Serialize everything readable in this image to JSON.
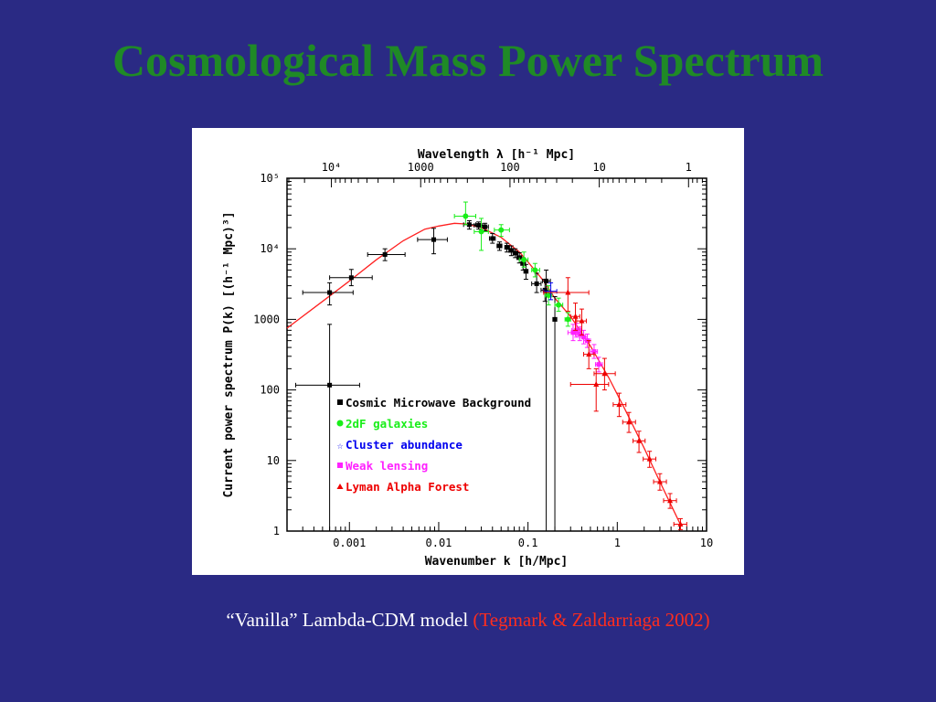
{
  "slide": {
    "title": "Cosmological Mass Power Spectrum",
    "caption_main": "“Vanilla” Lambda-CDM model ",
    "caption_ref": "(Tegmark & Zaldarriaga 2002)"
  },
  "colors": {
    "background": "#2a2a84",
    "title": "#1f8a26",
    "caption_main": "#ffffff",
    "caption_ref": "#ff2d1e",
    "model_curve": "#ff2020",
    "cmb": "#000000",
    "twodf": "#19ee19",
    "cluster": "#0000ee",
    "lensing": "#ff22ff",
    "lyman": "#ee0000"
  },
  "chart_data": {
    "type": "scatter",
    "title": "",
    "xlabel": "Wavenumber k [h/Mpc]",
    "ylabel": "Current power spectrum P(k) [(h⁻¹ Mpc)³]",
    "top_xlabel": "Wavelength λ [h⁻¹ Mpc]",
    "xscale": "log",
    "yscale": "log",
    "xlim": [
      0.0002,
      10
    ],
    "ylim": [
      1,
      100000
    ],
    "x_ticks": [
      {
        "value": 0.001,
        "label": "0.001"
      },
      {
        "value": 0.01,
        "label": "0.01"
      },
      {
        "value": 0.1,
        "label": "0.1"
      },
      {
        "value": 1,
        "label": "1"
      },
      {
        "value": 10,
        "label": "10"
      }
    ],
    "y_ticks": [
      {
        "value": 1,
        "label": "1"
      },
      {
        "value": 10,
        "label": "10"
      },
      {
        "value": 100,
        "label": "100"
      },
      {
        "value": 1000,
        "label": "1000"
      },
      {
        "value": 10000,
        "label": "10⁴"
      },
      {
        "value": 100000,
        "label": "10⁵"
      }
    ],
    "top_ticks": [
      {
        "value": 10000,
        "label": "10⁴"
      },
      {
        "value": 1000,
        "label": "1000"
      },
      {
        "value": 100,
        "label": "100"
      },
      {
        "value": 10,
        "label": "10"
      },
      {
        "value": 1,
        "label": "1"
      }
    ],
    "legend_position": "lower-left",
    "model": {
      "name": "Lambda-CDM model",
      "points": [
        [
          0.0002,
          750
        ],
        [
          0.0005,
          1800
        ],
        [
          0.001,
          3500
        ],
        [
          0.002,
          7000
        ],
        [
          0.004,
          13000
        ],
        [
          0.007,
          19000
        ],
        [
          0.01,
          21000
        ],
        [
          0.015,
          23000
        ],
        [
          0.02,
          22500
        ],
        [
          0.03,
          20000
        ],
        [
          0.05,
          14500
        ],
        [
          0.08,
          9000
        ],
        [
          0.1,
          6500
        ],
        [
          0.15,
          3500
        ],
        [
          0.2,
          2000
        ],
        [
          0.3,
          1100
        ],
        [
          0.5,
          420
        ],
        [
          0.8,
          150
        ],
        [
          1.2,
          55
        ],
        [
          2,
          15
        ],
        [
          3,
          5
        ],
        [
          5,
          1.3
        ]
      ]
    },
    "series": [
      {
        "name": "Cosmic Microwave Background",
        "marker": "square",
        "points": [
          {
            "x": 0.0006,
            "y": 117,
            "xlo": 0.00025,
            "xhi": 0.0013,
            "ylo": 1,
            "yhi": 850
          },
          {
            "x": 0.0006,
            "y": 2400,
            "xlo": 0.0003,
            "xhi": 0.0011,
            "ylo": 1600,
            "yhi": 3300
          },
          {
            "x": 0.00105,
            "y": 3900,
            "xlo": 0.0006,
            "xhi": 0.0018,
            "ylo": 3000,
            "yhi": 5100
          },
          {
            "x": 0.0025,
            "y": 8300,
            "xlo": 0.0016,
            "xhi": 0.0042,
            "ylo": 6800,
            "yhi": 10000
          },
          {
            "x": 0.0088,
            "y": 13500,
            "xlo": 0.0058,
            "xhi": 0.0125,
            "ylo": 8500,
            "yhi": 19500
          },
          {
            "x": 0.022,
            "y": 22000,
            "xlo": 0.019,
            "xhi": 0.026,
            "ylo": 19000,
            "yhi": 25000
          },
          {
            "x": 0.028,
            "y": 21500,
            "xlo": 0.025,
            "xhi": 0.031,
            "ylo": 19000,
            "yhi": 24000
          },
          {
            "x": 0.033,
            "y": 20500,
            "xlo": 0.03,
            "xhi": 0.036,
            "ylo": 18000,
            "yhi": 23000
          },
          {
            "x": 0.04,
            "y": 14000,
            "xlo": 0.037,
            "xhi": 0.043,
            "ylo": 12000,
            "yhi": 16500
          },
          {
            "x": 0.048,
            "y": 11000,
            "xlo": 0.045,
            "xhi": 0.051,
            "ylo": 9500,
            "yhi": 12500
          },
          {
            "x": 0.058,
            "y": 10500,
            "xlo": 0.055,
            "xhi": 0.062,
            "ylo": 9000,
            "yhi": 12000
          },
          {
            "x": 0.065,
            "y": 9500,
            "xlo": 0.061,
            "xhi": 0.069,
            "ylo": 8000,
            "yhi": 11000
          },
          {
            "x": 0.072,
            "y": 8700,
            "xlo": 0.068,
            "xhi": 0.077,
            "ylo": 7500,
            "yhi": 10000
          },
          {
            "x": 0.08,
            "y": 7500,
            "xlo": 0.075,
            "xhi": 0.085,
            "ylo": 6300,
            "yhi": 8800
          },
          {
            "x": 0.088,
            "y": 6200,
            "xlo": 0.083,
            "xhi": 0.094,
            "ylo": 5000,
            "yhi": 7500
          },
          {
            "x": 0.095,
            "y": 4800,
            "xlo": 0.09,
            "xhi": 0.1,
            "ylo": 3700,
            "yhi": 6000
          },
          {
            "x": 0.125,
            "y": 3200,
            "xlo": 0.11,
            "xhi": 0.14,
            "ylo": 2400,
            "yhi": 4500
          },
          {
            "x": 0.155,
            "y": 2600,
            "xlo": 0.14,
            "xhi": 0.17,
            "ylo": 1800,
            "yhi": 3700
          },
          {
            "x": 0.16,
            "y": 3500,
            "xlo": 0.145,
            "xhi": 0.178,
            "ylo": 1,
            "yhi": 5000
          },
          {
            "x": 0.2,
            "y": 1000,
            "xlo": 0.19,
            "xhi": 0.21,
            "ylo": 1,
            "yhi": 2100
          }
        ]
      },
      {
        "name": "2dF galaxies",
        "marker": "circle",
        "points": [
          {
            "x": 0.02,
            "y": 29000,
            "xlo": 0.015,
            "xhi": 0.026,
            "ylo": 22000,
            "yhi": 46000
          },
          {
            "x": 0.03,
            "y": 17500,
            "xlo": 0.025,
            "xhi": 0.036,
            "ylo": 9500,
            "yhi": 27000
          },
          {
            "x": 0.05,
            "y": 18500,
            "xlo": 0.042,
            "xhi": 0.062,
            "ylo": 15000,
            "yhi": 22000
          },
          {
            "x": 0.09,
            "y": 7000,
            "xlo": 0.08,
            "xhi": 0.1,
            "ylo": 5500,
            "yhi": 9000
          },
          {
            "x": 0.12,
            "y": 5000,
            "xlo": 0.11,
            "xhi": 0.135,
            "ylo": 4000,
            "yhi": 6200
          },
          {
            "x": 0.17,
            "y": 2200,
            "xlo": 0.155,
            "xhi": 0.185,
            "ylo": 1600,
            "yhi": 3000
          },
          {
            "x": 0.22,
            "y": 1600,
            "xlo": 0.2,
            "xhi": 0.245,
            "ylo": 1300,
            "yhi": 2000
          },
          {
            "x": 0.28,
            "y": 1000,
            "xlo": 0.26,
            "xhi": 0.3,
            "ylo": 800,
            "yhi": 1250
          }
        ]
      },
      {
        "name": "Cluster abundance",
        "marker": "star",
        "points": [
          {
            "x": 0.18,
            "y": 2500,
            "xlo": 0.15,
            "xhi": 0.21,
            "ylo": 1900,
            "yhi": 3300
          }
        ]
      },
      {
        "name": "Weak lensing",
        "marker": "square",
        "points": [
          {
            "x": 0.32,
            "y": 650,
            "xlo": 0.28,
            "xhi": 0.36,
            "ylo": 500,
            "yhi": 850
          },
          {
            "x": 0.35,
            "y": 700,
            "xlo": 0.31,
            "xhi": 0.39,
            "ylo": 560,
            "yhi": 880
          },
          {
            "x": 0.38,
            "y": 620,
            "xlo": 0.34,
            "xhi": 0.42,
            "ylo": 500,
            "yhi": 780
          },
          {
            "x": 0.42,
            "y": 560,
            "xlo": 0.38,
            "xhi": 0.46,
            "ylo": 450,
            "yhi": 700
          },
          {
            "x": 0.46,
            "y": 500,
            "xlo": 0.42,
            "xhi": 0.5,
            "ylo": 400,
            "yhi": 620
          },
          {
            "x": 0.55,
            "y": 350,
            "xlo": 0.5,
            "xhi": 0.6,
            "ylo": 280,
            "yhi": 440
          },
          {
            "x": 0.62,
            "y": 230,
            "xlo": 0.57,
            "xhi": 0.68,
            "ylo": 180,
            "yhi": 290
          }
        ]
      },
      {
        "name": "Lyman Alpha Forest",
        "marker": "triangle",
        "points": [
          {
            "x": 0.28,
            "y": 2400,
            "xlo": 0.15,
            "xhi": 0.48,
            "ylo": 1300,
            "yhi": 3900
          },
          {
            "x": 0.34,
            "y": 1100,
            "xlo": 0.3,
            "xhi": 0.38,
            "ylo": 700,
            "yhi": 1700
          },
          {
            "x": 0.4,
            "y": 950,
            "xlo": 0.35,
            "xhi": 0.45,
            "ylo": 600,
            "yhi": 1400
          },
          {
            "x": 0.48,
            "y": 320,
            "xlo": 0.42,
            "xhi": 0.55,
            "ylo": 200,
            "yhi": 500
          },
          {
            "x": 0.58,
            "y": 120,
            "xlo": 0.3,
            "xhi": 0.8,
            "ylo": 50,
            "yhi": 200
          },
          {
            "x": 0.72,
            "y": 170,
            "xlo": 0.55,
            "xhi": 0.95,
            "ylo": 100,
            "yhi": 280
          },
          {
            "x": 1.05,
            "y": 62,
            "xlo": 0.9,
            "xhi": 1.25,
            "ylo": 42,
            "yhi": 90
          },
          {
            "x": 1.35,
            "y": 35,
            "xlo": 1.15,
            "xhi": 1.6,
            "ylo": 25,
            "yhi": 48
          },
          {
            "x": 1.75,
            "y": 19,
            "xlo": 1.5,
            "xhi": 2.05,
            "ylo": 13,
            "yhi": 26
          },
          {
            "x": 2.3,
            "y": 10.5,
            "xlo": 1.95,
            "xhi": 2.7,
            "ylo": 8,
            "yhi": 13.5
          },
          {
            "x": 3.0,
            "y": 5,
            "xlo": 2.55,
            "xhi": 3.55,
            "ylo": 3.8,
            "yhi": 6.5
          },
          {
            "x": 3.9,
            "y": 2.7,
            "xlo": 3.3,
            "xhi": 4.6,
            "ylo": 2.1,
            "yhi": 3.4
          },
          {
            "x": 5.1,
            "y": 1.25,
            "xlo": 4.3,
            "xhi": 6.0,
            "ylo": 1.05,
            "yhi": 1.5
          }
        ]
      }
    ]
  }
}
